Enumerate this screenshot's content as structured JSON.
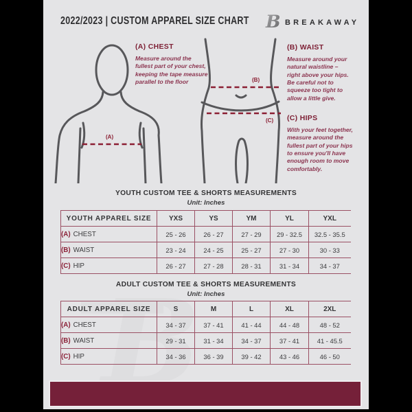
{
  "page": {
    "background_color": "#e4e4e6",
    "frame_color": "#000000",
    "accent_color": "#7e2136",
    "table_line_color": "#9a4f63",
    "footer_color": "#752039"
  },
  "header": {
    "title": "2022/2023  |  CUSTOM APPAREL SIZE CHART",
    "brand": "BREAKAWAY",
    "logo_icon": "breakaway-b-logo"
  },
  "figure_labels": {
    "chest": "(A)",
    "waist": "(B)",
    "hips": "(C)"
  },
  "instructions": [
    {
      "key": "(A)",
      "name": "CHEST",
      "text": "Measure around the fullest part of your chest, keeping the tape measure parallel to the floor"
    },
    {
      "key": "(B)",
      "name": "WAIST",
      "text": "Measure around your natural waistline – right above your hips. Be careful not to squeeze too tight to allow a little give."
    },
    {
      "key": "(C)",
      "name": "HIPS",
      "text": "With your feet together, measure around the fullest part of your hips to ensure you'll have enough room to move comfortably."
    }
  ],
  "instruction_headings": {
    "chest": "(A) CHEST",
    "waist": "(B) WAIST",
    "hips": "(C) HIPS"
  },
  "youth_table": {
    "title": "YOUTH CUSTOM TEE & SHORTS MEASUREMENTS",
    "unit": "Unit: Inches",
    "size_label": "YOUTH APPAREL SIZE",
    "columns": [
      "YXS",
      "YS",
      "YM",
      "YL",
      "YXL"
    ],
    "rows": [
      {
        "key": "(A)",
        "label": "CHEST",
        "values": [
          "25 - 26",
          "26 - 27",
          "27 - 29",
          "29 - 32.5",
          "32.5 - 35.5"
        ]
      },
      {
        "key": "(B)",
        "label": "WAIST",
        "values": [
          "23 - 24",
          "24 - 25",
          "25 - 27",
          "27 - 30",
          "30 - 33"
        ]
      },
      {
        "key": "(C)",
        "label": "HIP",
        "values": [
          "26 - 27",
          "27 - 28",
          "28 - 31",
          "31 - 34",
          "34 - 37"
        ]
      }
    ]
  },
  "adult_table": {
    "title": "ADULT CUSTOM TEE & SHORTS MEASUREMENTS",
    "unit": "Unit: Inches",
    "size_label": "ADULT APPAREL SIZE",
    "columns": [
      "S",
      "M",
      "L",
      "XL",
      "2XL"
    ],
    "rows": [
      {
        "key": "(A)",
        "label": "CHEST",
        "values": [
          "34 - 37",
          "37 - 41",
          "41 - 44",
          "44 - 48",
          "48 - 52"
        ]
      },
      {
        "key": "(B)",
        "label": "WAIST",
        "values": [
          "29 - 31",
          "31 - 34",
          "34 - 37",
          "37 - 41",
          "41 - 45.5"
        ]
      },
      {
        "key": "(C)",
        "label": "HIP",
        "values": [
          "34 - 36",
          "36 - 39",
          "39 - 42",
          "43 - 46",
          "46 - 50"
        ]
      }
    ]
  }
}
